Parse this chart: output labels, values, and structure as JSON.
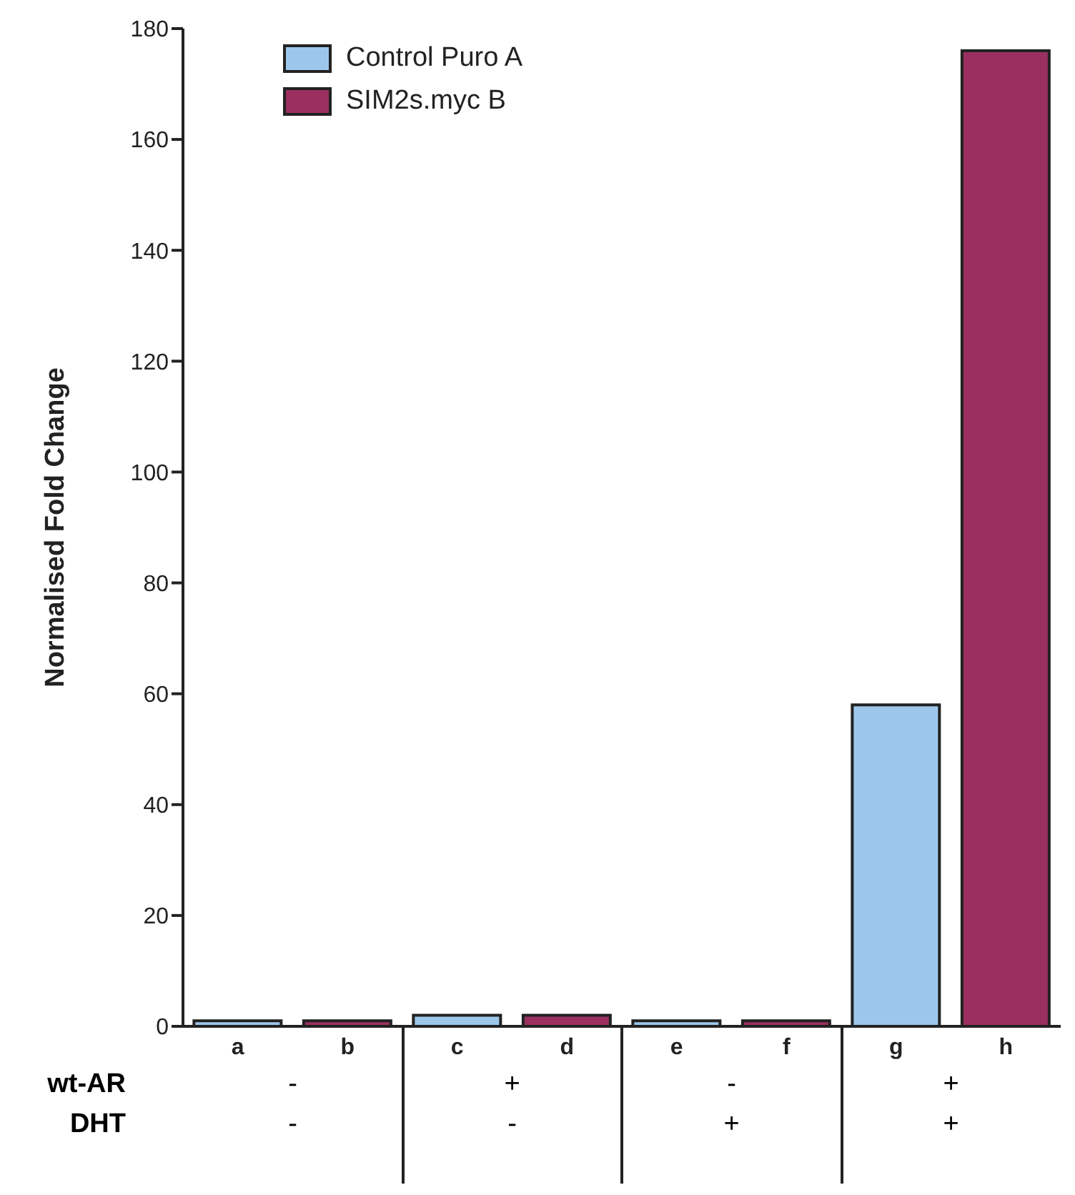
{
  "chart_data": {
    "type": "bar",
    "ylabel": "Normalised Fold Change",
    "categories": [
      "a",
      "b",
      "c",
      "d",
      "e",
      "f",
      "g",
      "h"
    ],
    "series": [
      {
        "name": "Control Puro A",
        "color": "#9dc7ea",
        "values": [
          1,
          null,
          2,
          null,
          1,
          null,
          58,
          null
        ]
      },
      {
        "name": "SIM2s.myc B",
        "color": "#9b3060",
        "values": [
          null,
          1,
          null,
          2,
          null,
          1,
          null,
          176
        ]
      }
    ],
    "ylim": [
      0,
      180
    ],
    "yticks": [
      0,
      20,
      40,
      60,
      80,
      100,
      120,
      140,
      160,
      180
    ],
    "legend": "top left",
    "annotations": [
      "wt-AR",
      "-",
      "+",
      "-",
      "+",
      "DHT",
      "-",
      "-",
      "+",
      "+"
    ]
  }
}
